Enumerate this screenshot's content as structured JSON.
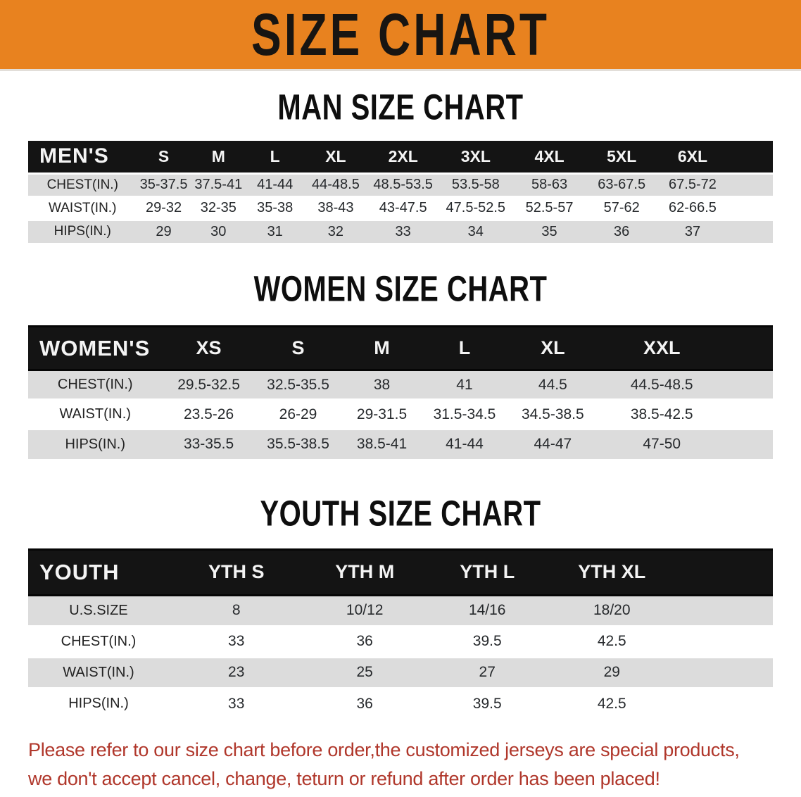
{
  "banner": {
    "title": "SIZE CHART"
  },
  "colors": {
    "banner_bg": "#e8821f",
    "header_bar": "#141414",
    "row_stripe": "#dcdcdc",
    "disclaimer_text": "#b0372b"
  },
  "sections": [
    {
      "heading": "MAN SIZE CHART",
      "table": {
        "label": "MEN'S",
        "columns": [
          "S",
          "M",
          "L",
          "XL",
          "2XL",
          "3XL",
          "4XL",
          "5XL",
          "6XL"
        ],
        "rows": [
          {
            "label": "CHEST(IN.)",
            "values": [
              "35-37.5",
              "37.5-41",
              "41-44",
              "44-48.5",
              "48.5-53.5",
              "53.5-58",
              "58-63",
              "63-67.5",
              "67.5-72"
            ]
          },
          {
            "label": "WAIST(IN.)",
            "values": [
              "29-32",
              "32-35",
              "35-38",
              "38-43",
              "43-47.5",
              "47.5-52.5",
              "52.5-57",
              "57-62",
              "62-66.5"
            ]
          },
          {
            "label": "HIPS(IN.)",
            "values": [
              "29",
              "30",
              "31",
              "32",
              "33",
              "34",
              "35",
              "36",
              "37"
            ]
          }
        ]
      }
    },
    {
      "heading": "WOMEN SIZE CHART",
      "table": {
        "label": "WOMEN'S",
        "columns": [
          "XS",
          "S",
          "M",
          "L",
          "XL",
          "XXL"
        ],
        "rows": [
          {
            "label": "CHEST(IN.)",
            "values": [
              "29.5-32.5",
              "32.5-35.5",
              "38",
              "41",
              "44.5",
              "44.5-48.5"
            ]
          },
          {
            "label": "WAIST(IN.)",
            "values": [
              "23.5-26",
              "26-29",
              "29-31.5",
              "31.5-34.5",
              "34.5-38.5",
              "38.5-42.5"
            ]
          },
          {
            "label": "HIPS(IN.)",
            "values": [
              "33-35.5",
              "35.5-38.5",
              "38.5-41",
              "41-44",
              "44-47",
              "47-50"
            ]
          }
        ]
      }
    },
    {
      "heading": "YOUTH SIZE CHART",
      "table": {
        "label": "YOUTH",
        "columns": [
          "YTH S",
          "YTH M",
          "YTH L",
          "YTH XL"
        ],
        "rows": [
          {
            "label": "U.S.SIZE",
            "values": [
              "8",
              "10/12",
              "14/16",
              "18/20"
            ]
          },
          {
            "label": "CHEST(IN.)",
            "values": [
              "33",
              "36",
              "39.5",
              "42.5"
            ]
          },
          {
            "label": "WAIST(IN.)",
            "values": [
              "23",
              "25",
              "27",
              "29"
            ]
          },
          {
            "label": "HIPS(IN.)",
            "values": [
              "33",
              "36",
              "39.5",
              "42.5"
            ]
          }
        ]
      }
    }
  ],
  "disclaimer": {
    "line1": "Please refer to our size chart before order,the customized jerseys are special products,",
    "line2": "we don't accept cancel, change, teturn or refund after order has been placed!"
  }
}
